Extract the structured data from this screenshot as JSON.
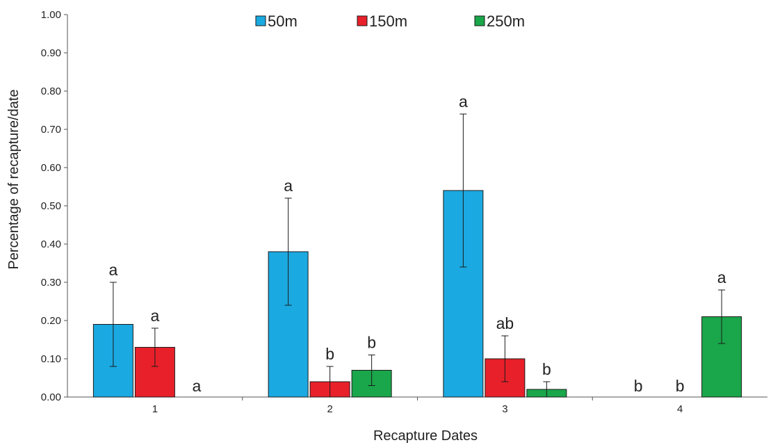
{
  "chart_data": {
    "type": "bar",
    "xlabel": "Recapture Dates",
    "ylabel": "Percentage of recapture/date",
    "ylim": [
      0,
      1.0
    ],
    "ytick_step": 0.1,
    "ytick_labels": [
      "0.00",
      "0.10",
      "0.20",
      "0.30",
      "0.40",
      "0.50",
      "0.60",
      "0.70",
      "0.80",
      "0.90",
      "1.00"
    ],
    "categories": [
      "1",
      "2",
      "3",
      "4"
    ],
    "grid": false,
    "legend_position": "top",
    "series": [
      {
        "name": "50m",
        "color": "#1ba9e1",
        "values": [
          0.19,
          0.38,
          0.54,
          0
        ],
        "error_low": [
          0.08,
          0.24,
          0.34,
          null
        ],
        "error_high": [
          0.3,
          0.52,
          0.74,
          null
        ],
        "sig_labels": [
          "a",
          "a",
          "a",
          "b"
        ]
      },
      {
        "name": "150m",
        "color": "#e8202a",
        "values": [
          0.13,
          0.04,
          0.1,
          0
        ],
        "error_low": [
          0.08,
          0.0,
          0.04,
          null
        ],
        "error_high": [
          0.18,
          0.08,
          0.16,
          null
        ],
        "sig_labels": [
          "a",
          "b",
          "ab",
          "b"
        ]
      },
      {
        "name": "250m",
        "color": "#1aa64a",
        "values": [
          0,
          0.07,
          0.02,
          0.21
        ],
        "error_low": [
          null,
          0.03,
          0.0,
          0.14
        ],
        "error_high": [
          null,
          0.11,
          0.04,
          0.28
        ],
        "sig_labels": [
          "a",
          "b",
          "b",
          "a"
        ]
      }
    ]
  }
}
